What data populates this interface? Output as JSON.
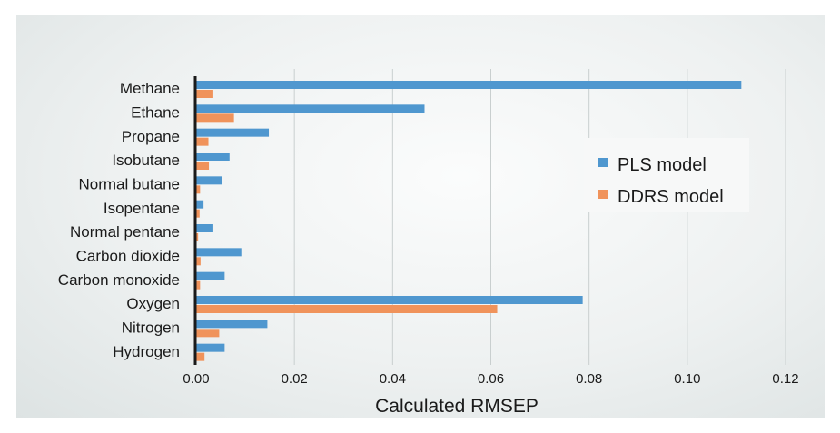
{
  "chart_data": {
    "type": "bar",
    "orientation": "horizontal",
    "title": "",
    "xlabel": "Calculated RMSEP",
    "ylabel": "",
    "xlim": [
      0,
      0.12
    ],
    "xticks": [
      "0.00",
      "0.02",
      "0.04",
      "0.06",
      "0.08",
      "0.10",
      "0.12"
    ],
    "grid": "vertical",
    "legend_position": "right",
    "categories": [
      "Methane",
      "Ethane",
      "Propane",
      "Isobutane",
      "Normal butane",
      "Isopentane",
      "Normal pentane",
      "Carbon dioxide",
      "Carbon monoxide",
      "Oxygen",
      "Nitrogen",
      "Hydrogen"
    ],
    "series": [
      {
        "name": "PLS model",
        "color": "#4f97cf",
        "values": [
          0.111,
          0.0465,
          0.0148,
          0.0068,
          0.0052,
          0.0015,
          0.0035,
          0.0092,
          0.0058,
          0.0787,
          0.0145,
          0.0058
        ]
      },
      {
        "name": "DDRS model",
        "color": "#f0935b",
        "values": [
          0.0035,
          0.0077,
          0.0025,
          0.0026,
          0.0008,
          0.0007,
          0.0004,
          0.0009,
          0.0008,
          0.0613,
          0.0047,
          0.0017
        ]
      }
    ]
  }
}
